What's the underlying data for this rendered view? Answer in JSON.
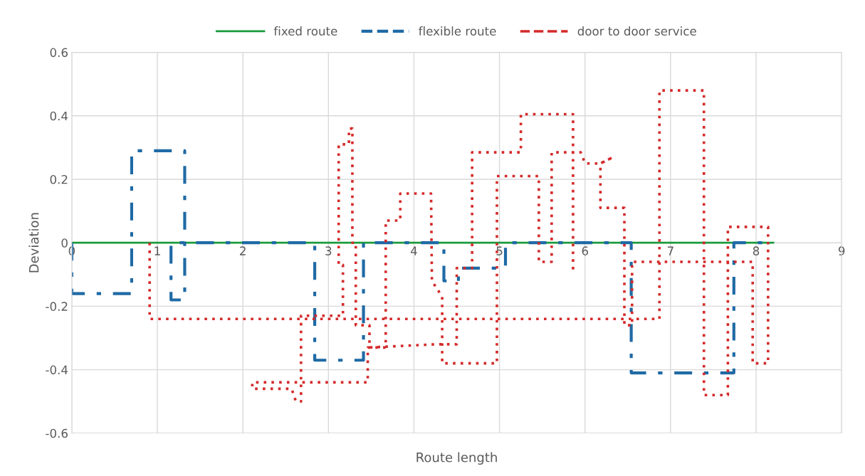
{
  "chart_data": {
    "type": "line",
    "xlabel": "Route length",
    "ylabel": "Deviation",
    "xlim": [
      0,
      9
    ],
    "xticks": [
      0,
      1,
      2,
      3,
      4,
      5,
      6,
      7,
      8,
      9
    ],
    "ylim": [
      -0.6,
      0.6
    ],
    "yticks": [
      -0.6,
      -0.4,
      -0.2,
      0,
      0.2,
      0.4,
      0.6
    ],
    "grid": true,
    "legend": "top",
    "marker": "none",
    "series": [
      {
        "name": "fixed route",
        "color": "#1a9a3c",
        "line_style": "solid",
        "x": [
          0,
          8.2
        ],
        "values": [
          0,
          0
        ]
      },
      {
        "name": "flexible route",
        "color": "#1f6aa5",
        "line_style": "dashdot",
        "x": [
          0,
          0,
          0.7,
          0.7,
          1.32,
          1.32,
          1.16,
          1.16,
          2.84,
          2.84,
          3.41,
          3.41,
          4.35,
          4.35,
          4.52,
          4.52,
          5.07,
          5.07,
          6.54,
          6.54,
          7.74,
          7.74,
          8.1
        ],
        "values": [
          0,
          -0.16,
          -0.16,
          0.29,
          0.29,
          -0.18,
          -0.18,
          0,
          0,
          -0.37,
          -0.37,
          0,
          0,
          -0.12,
          -0.12,
          -0.08,
          -0.08,
          0,
          0,
          -0.41,
          -0.41,
          0,
          0
        ]
      },
      {
        "name": "door to door service",
        "color": "#d42a2a",
        "line_style": "dotted",
        "x": [
          0.91,
          0.91,
          6.87,
          6.87,
          7.39,
          7.39,
          7.67,
          7.67,
          8.14,
          8.14,
          7.96,
          7.96,
          6.55,
          6.55,
          6.46,
          6.46,
          6.18,
          6.18,
          6.33,
          6.18,
          6.0,
          5.95,
          5.61,
          5.61,
          5.46,
          5.46,
          4.97,
          4.97,
          4.33,
          4.33,
          4.21,
          4.2,
          3.84,
          3.84,
          3.67,
          3.67,
          3.46,
          3.46,
          2.11,
          2.11,
          2.57,
          2.62,
          2.68,
          2.68,
          3.17,
          3.17,
          3.12,
          3.12,
          3.24,
          3.24,
          3.28,
          3.28,
          3.32,
          3.32,
          3.48,
          3.48,
          4.25,
          4.5,
          4.5,
          4.68,
          4.68,
          5.25,
          5.25,
          5.86,
          5.86
        ],
        "values": [
          0,
          -0.24,
          -0.24,
          0.48,
          0.48,
          -0.48,
          -0.48,
          0.05,
          0.05,
          -0.38,
          -0.38,
          -0.06,
          -0.06,
          -0.26,
          -0.26,
          0.11,
          0.11,
          0.25,
          0.27,
          0.25,
          0.25,
          0.285,
          0.285,
          -0.06,
          -0.06,
          0.21,
          0.21,
          -0.38,
          -0.38,
          -0.17,
          -0.12,
          0.155,
          0.155,
          0.07,
          0.07,
          -0.33,
          -0.33,
          -0.44,
          -0.44,
          -0.46,
          -0.46,
          -0.5,
          -0.5,
          -0.23,
          -0.23,
          -0.07,
          -0.07,
          0.31,
          0.31,
          0.36,
          0.36,
          0,
          0,
          -0.26,
          -0.26,
          -0.33,
          -0.32,
          -0.32,
          -0.08,
          -0.08,
          0.285,
          0.285,
          0.405,
          0.405,
          -0.09
        ]
      }
    ]
  }
}
